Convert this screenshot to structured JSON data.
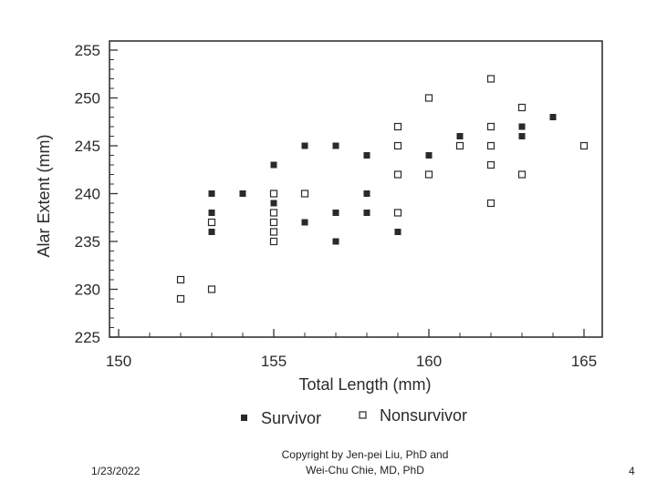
{
  "chart_data": {
    "type": "scatter",
    "title": "",
    "xlabel": "Total Length (mm)",
    "ylabel": "Alar Extent (mm)",
    "xlim": [
      150,
      165
    ],
    "ylim": [
      225,
      255
    ],
    "xticks": [
      "150",
      "155",
      "160",
      "165"
    ],
    "yticks": [
      "225",
      "230",
      "235",
      "240",
      "245",
      "250",
      "255"
    ],
    "grid": false,
    "legend_position": "bottom",
    "series": [
      {
        "name": "Survivor",
        "marker": "filled-square",
        "color": "#2a2a2a",
        "points": [
          {
            "x": 153,
            "y": 240
          },
          {
            "x": 153,
            "y": 238
          },
          {
            "x": 153,
            "y": 236
          },
          {
            "x": 154,
            "y": 240
          },
          {
            "x": 155,
            "y": 243
          },
          {
            "x": 155,
            "y": 239
          },
          {
            "x": 155,
            "y": 236
          },
          {
            "x": 156,
            "y": 245
          },
          {
            "x": 156,
            "y": 237
          },
          {
            "x": 157,
            "y": 245
          },
          {
            "x": 157,
            "y": 238
          },
          {
            "x": 157,
            "y": 235
          },
          {
            "x": 158,
            "y": 244
          },
          {
            "x": 158,
            "y": 240
          },
          {
            "x": 158,
            "y": 238
          },
          {
            "x": 159,
            "y": 236
          },
          {
            "x": 160,
            "y": 244
          },
          {
            "x": 161,
            "y": 246
          },
          {
            "x": 163,
            "y": 247
          },
          {
            "x": 163,
            "y": 246
          },
          {
            "x": 164,
            "y": 248
          }
        ]
      },
      {
        "name": "Nonsurvivor",
        "marker": "open-square",
        "color": "#2a2a2a",
        "points": [
          {
            "x": 152,
            "y": 231
          },
          {
            "x": 152,
            "y": 229
          },
          {
            "x": 153,
            "y": 237
          },
          {
            "x": 153,
            "y": 230
          },
          {
            "x": 155,
            "y": 240
          },
          {
            "x": 155,
            "y": 238
          },
          {
            "x": 155,
            "y": 237
          },
          {
            "x": 155,
            "y": 236
          },
          {
            "x": 155,
            "y": 235
          },
          {
            "x": 156,
            "y": 240
          },
          {
            "x": 159,
            "y": 247
          },
          {
            "x": 159,
            "y": 245
          },
          {
            "x": 159,
            "y": 242
          },
          {
            "x": 159,
            "y": 238
          },
          {
            "x": 160,
            "y": 250
          },
          {
            "x": 160,
            "y": 242
          },
          {
            "x": 161,
            "y": 245
          },
          {
            "x": 162,
            "y": 252
          },
          {
            "x": 162,
            "y": 247
          },
          {
            "x": 162,
            "y": 245
          },
          {
            "x": 162,
            "y": 243
          },
          {
            "x": 162,
            "y": 239
          },
          {
            "x": 163,
            "y": 249
          },
          {
            "x": 163,
            "y": 242
          },
          {
            "x": 165,
            "y": 245
          }
        ]
      }
    ]
  },
  "footer": {
    "date": "1/23/2022",
    "copyright_line1": "Copyright by Jen-pei Liu, PhD and",
    "copyright_line2": "Wei-Chu Chie, MD, PhD",
    "page": "4"
  }
}
